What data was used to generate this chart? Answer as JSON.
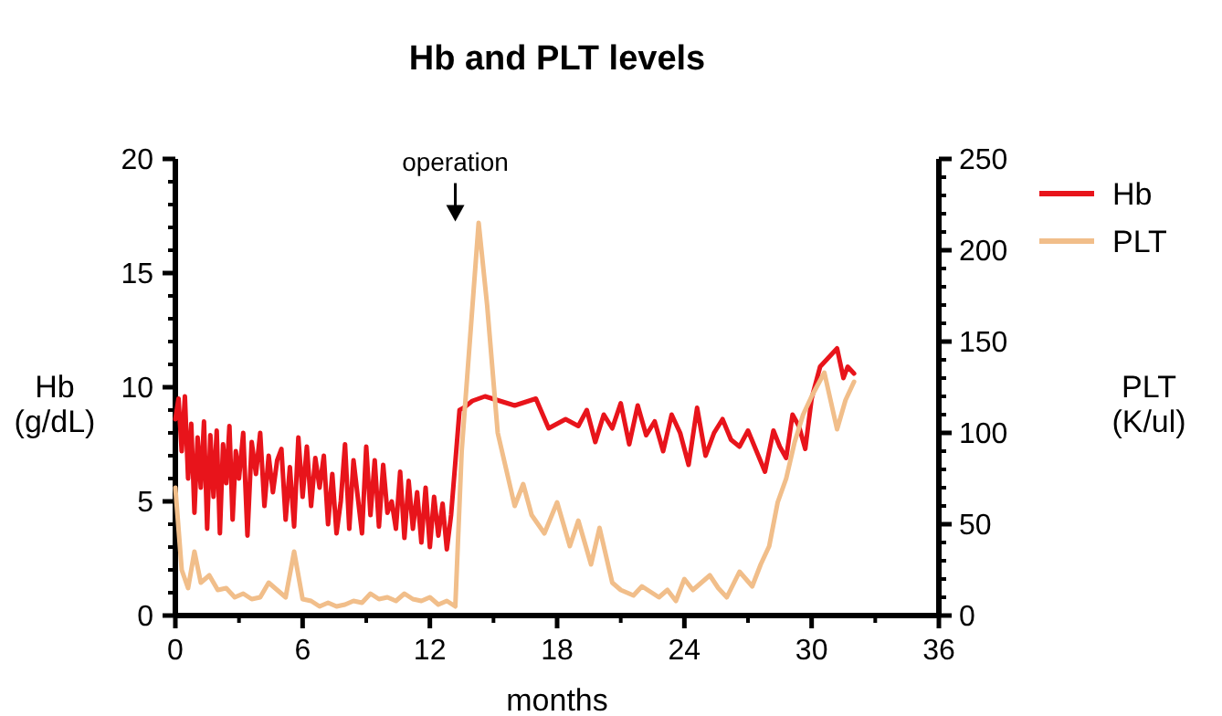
{
  "chart_data": {
    "type": "line",
    "title": "Hb and PLT levels",
    "xlabel": "months",
    "ylabel": "Hb\n(g/dL)",
    "y2label": "PLT\n(K/ul)",
    "xlim": [
      0,
      36
    ],
    "xticks": [
      0,
      6,
      12,
      18,
      24,
      30,
      36
    ],
    "ylim": [
      0,
      20
    ],
    "yticks": [
      0,
      5,
      10,
      15,
      20
    ],
    "y2lim": [
      0,
      250
    ],
    "y2ticks": [
      0,
      50,
      100,
      150,
      200,
      250
    ],
    "legend": "top right",
    "grid": false,
    "annotations": [
      {
        "text": "operation",
        "x": 13.2,
        "y": 17.5
      }
    ],
    "series": [
      {
        "name": "Hb",
        "color": "#e8141b",
        "x": [
          0,
          0.15,
          0.3,
          0.45,
          0.6,
          0.75,
          0.9,
          1.05,
          1.2,
          1.35,
          1.5,
          1.65,
          1.8,
          1.95,
          2.1,
          2.25,
          2.4,
          2.55,
          2.7,
          2.85,
          3.0,
          3.2,
          3.4,
          3.6,
          3.8,
          4.0,
          4.2,
          4.4,
          4.6,
          4.8,
          5.0,
          5.2,
          5.4,
          5.6,
          5.8,
          6.0,
          6.2,
          6.4,
          6.6,
          6.8,
          7.0,
          7.2,
          7.4,
          7.6,
          7.8,
          8.0,
          8.2,
          8.4,
          8.6,
          8.8,
          9.0,
          9.2,
          9.4,
          9.6,
          9.8,
          10.0,
          10.2,
          10.4,
          10.6,
          10.8,
          11.0,
          11.2,
          11.4,
          11.6,
          11.8,
          12.0,
          12.2,
          12.4,
          12.6,
          12.8,
          13.0,
          13.2,
          13.4,
          13.6,
          14.0,
          14.6,
          16.0,
          17.0,
          17.6,
          18.4,
          19.0,
          19.4,
          19.8,
          20.2,
          20.6,
          21.0,
          21.4,
          21.8,
          22.2,
          22.6,
          23.0,
          23.4,
          23.8,
          24.2,
          24.6,
          25.0,
          25.4,
          25.8,
          26.2,
          26.6,
          27.0,
          27.4,
          27.8,
          28.2,
          28.5,
          28.8,
          29.1,
          29.4,
          29.7,
          30.0,
          30.4,
          30.8,
          31.2,
          31.5,
          31.7,
          32.0
        ],
        "values": [
          8.6,
          9.5,
          7.2,
          9.6,
          6.0,
          8.4,
          4.5,
          7.8,
          5.6,
          8.5,
          3.8,
          7.9,
          5.2,
          8.1,
          3.6,
          7.5,
          5.8,
          8.3,
          4.2,
          7.2,
          6.0,
          8.0,
          3.5,
          7.6,
          6.2,
          8.0,
          4.8,
          7.0,
          5.4,
          6.8,
          7.3,
          4.2,
          6.5,
          3.9,
          7.8,
          5.2,
          7.4,
          4.8,
          6.9,
          5.6,
          7.0,
          4.0,
          6.2,
          3.6,
          5.0,
          7.5,
          3.8,
          6.8,
          5.2,
          3.6,
          7.4,
          4.4,
          6.8,
          3.9,
          6.6,
          4.5,
          5.0,
          3.8,
          6.3,
          3.4,
          5.9,
          3.8,
          5.4,
          3.2,
          5.6,
          3.0,
          5.2,
          3.5,
          4.9,
          2.9,
          4.4,
          6.7,
          9.0,
          9.1,
          9.4,
          9.6,
          9.2,
          9.5,
          8.2,
          8.6,
          8.3,
          9.0,
          7.6,
          8.8,
          8.2,
          9.3,
          7.5,
          9.2,
          7.9,
          8.5,
          7.2,
          8.8,
          8.0,
          6.6,
          9.1,
          7.0,
          8.0,
          8.6,
          7.7,
          7.4,
          8.1,
          7.2,
          6.3,
          8.1,
          7.4,
          6.9,
          8.8,
          8.3,
          7.3,
          9.5,
          10.9,
          11.3,
          11.7,
          10.4,
          10.9,
          10.6
        ]
      },
      {
        "name": "PLT",
        "color": "#f1be8a",
        "axis": "y2",
        "x": [
          0,
          0.3,
          0.6,
          0.9,
          1.2,
          1.6,
          2.0,
          2.4,
          2.8,
          3.2,
          3.6,
          4.0,
          4.4,
          4.8,
          5.2,
          5.6,
          6.0,
          6.4,
          6.8,
          7.2,
          7.6,
          8.0,
          8.4,
          8.8,
          9.2,
          9.6,
          10.0,
          10.4,
          10.8,
          11.2,
          11.6,
          12.0,
          12.4,
          12.8,
          13.2,
          13.5,
          14.3,
          14.7,
          15.2,
          16.0,
          16.4,
          16.8,
          17.4,
          18.0,
          18.6,
          19.0,
          19.6,
          20.0,
          20.6,
          21.0,
          21.6,
          22.0,
          22.4,
          22.8,
          23.2,
          23.6,
          24.0,
          24.4,
          24.8,
          25.2,
          25.6,
          26.0,
          26.6,
          27.2,
          27.6,
          28.0,
          28.4,
          28.8,
          29.2,
          29.6,
          30.0,
          30.6,
          31.2,
          31.6,
          32.0
        ],
        "values": [
          70,
          25,
          15,
          35,
          18,
          22,
          14,
          15,
          10,
          12,
          9,
          10,
          18,
          14,
          10,
          35,
          9,
          8,
          5,
          7,
          5,
          6,
          8,
          7,
          12,
          9,
          10,
          8,
          12,
          9,
          8,
          10,
          6,
          8,
          5,
          90,
          215,
          170,
          100,
          60,
          72,
          55,
          45,
          62,
          38,
          52,
          28,
          48,
          18,
          14,
          11,
          16,
          13,
          10,
          14,
          8,
          20,
          14,
          18,
          22,
          15,
          10,
          24,
          16,
          28,
          38,
          62,
          75,
          95,
          110,
          120,
          133,
          102,
          118,
          128
        ]
      }
    ]
  }
}
